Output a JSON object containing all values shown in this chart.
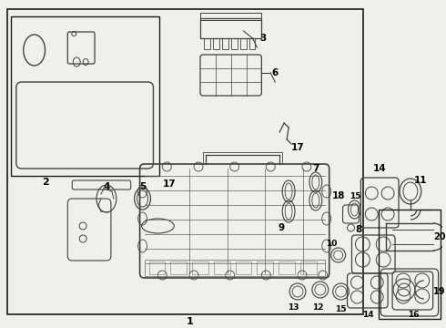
{
  "bg_color": "#f0f0eb",
  "line_color": "#404040",
  "border_color": "#1a1a1a",
  "figsize": [
    4.9,
    3.6
  ],
  "dpi": 100
}
